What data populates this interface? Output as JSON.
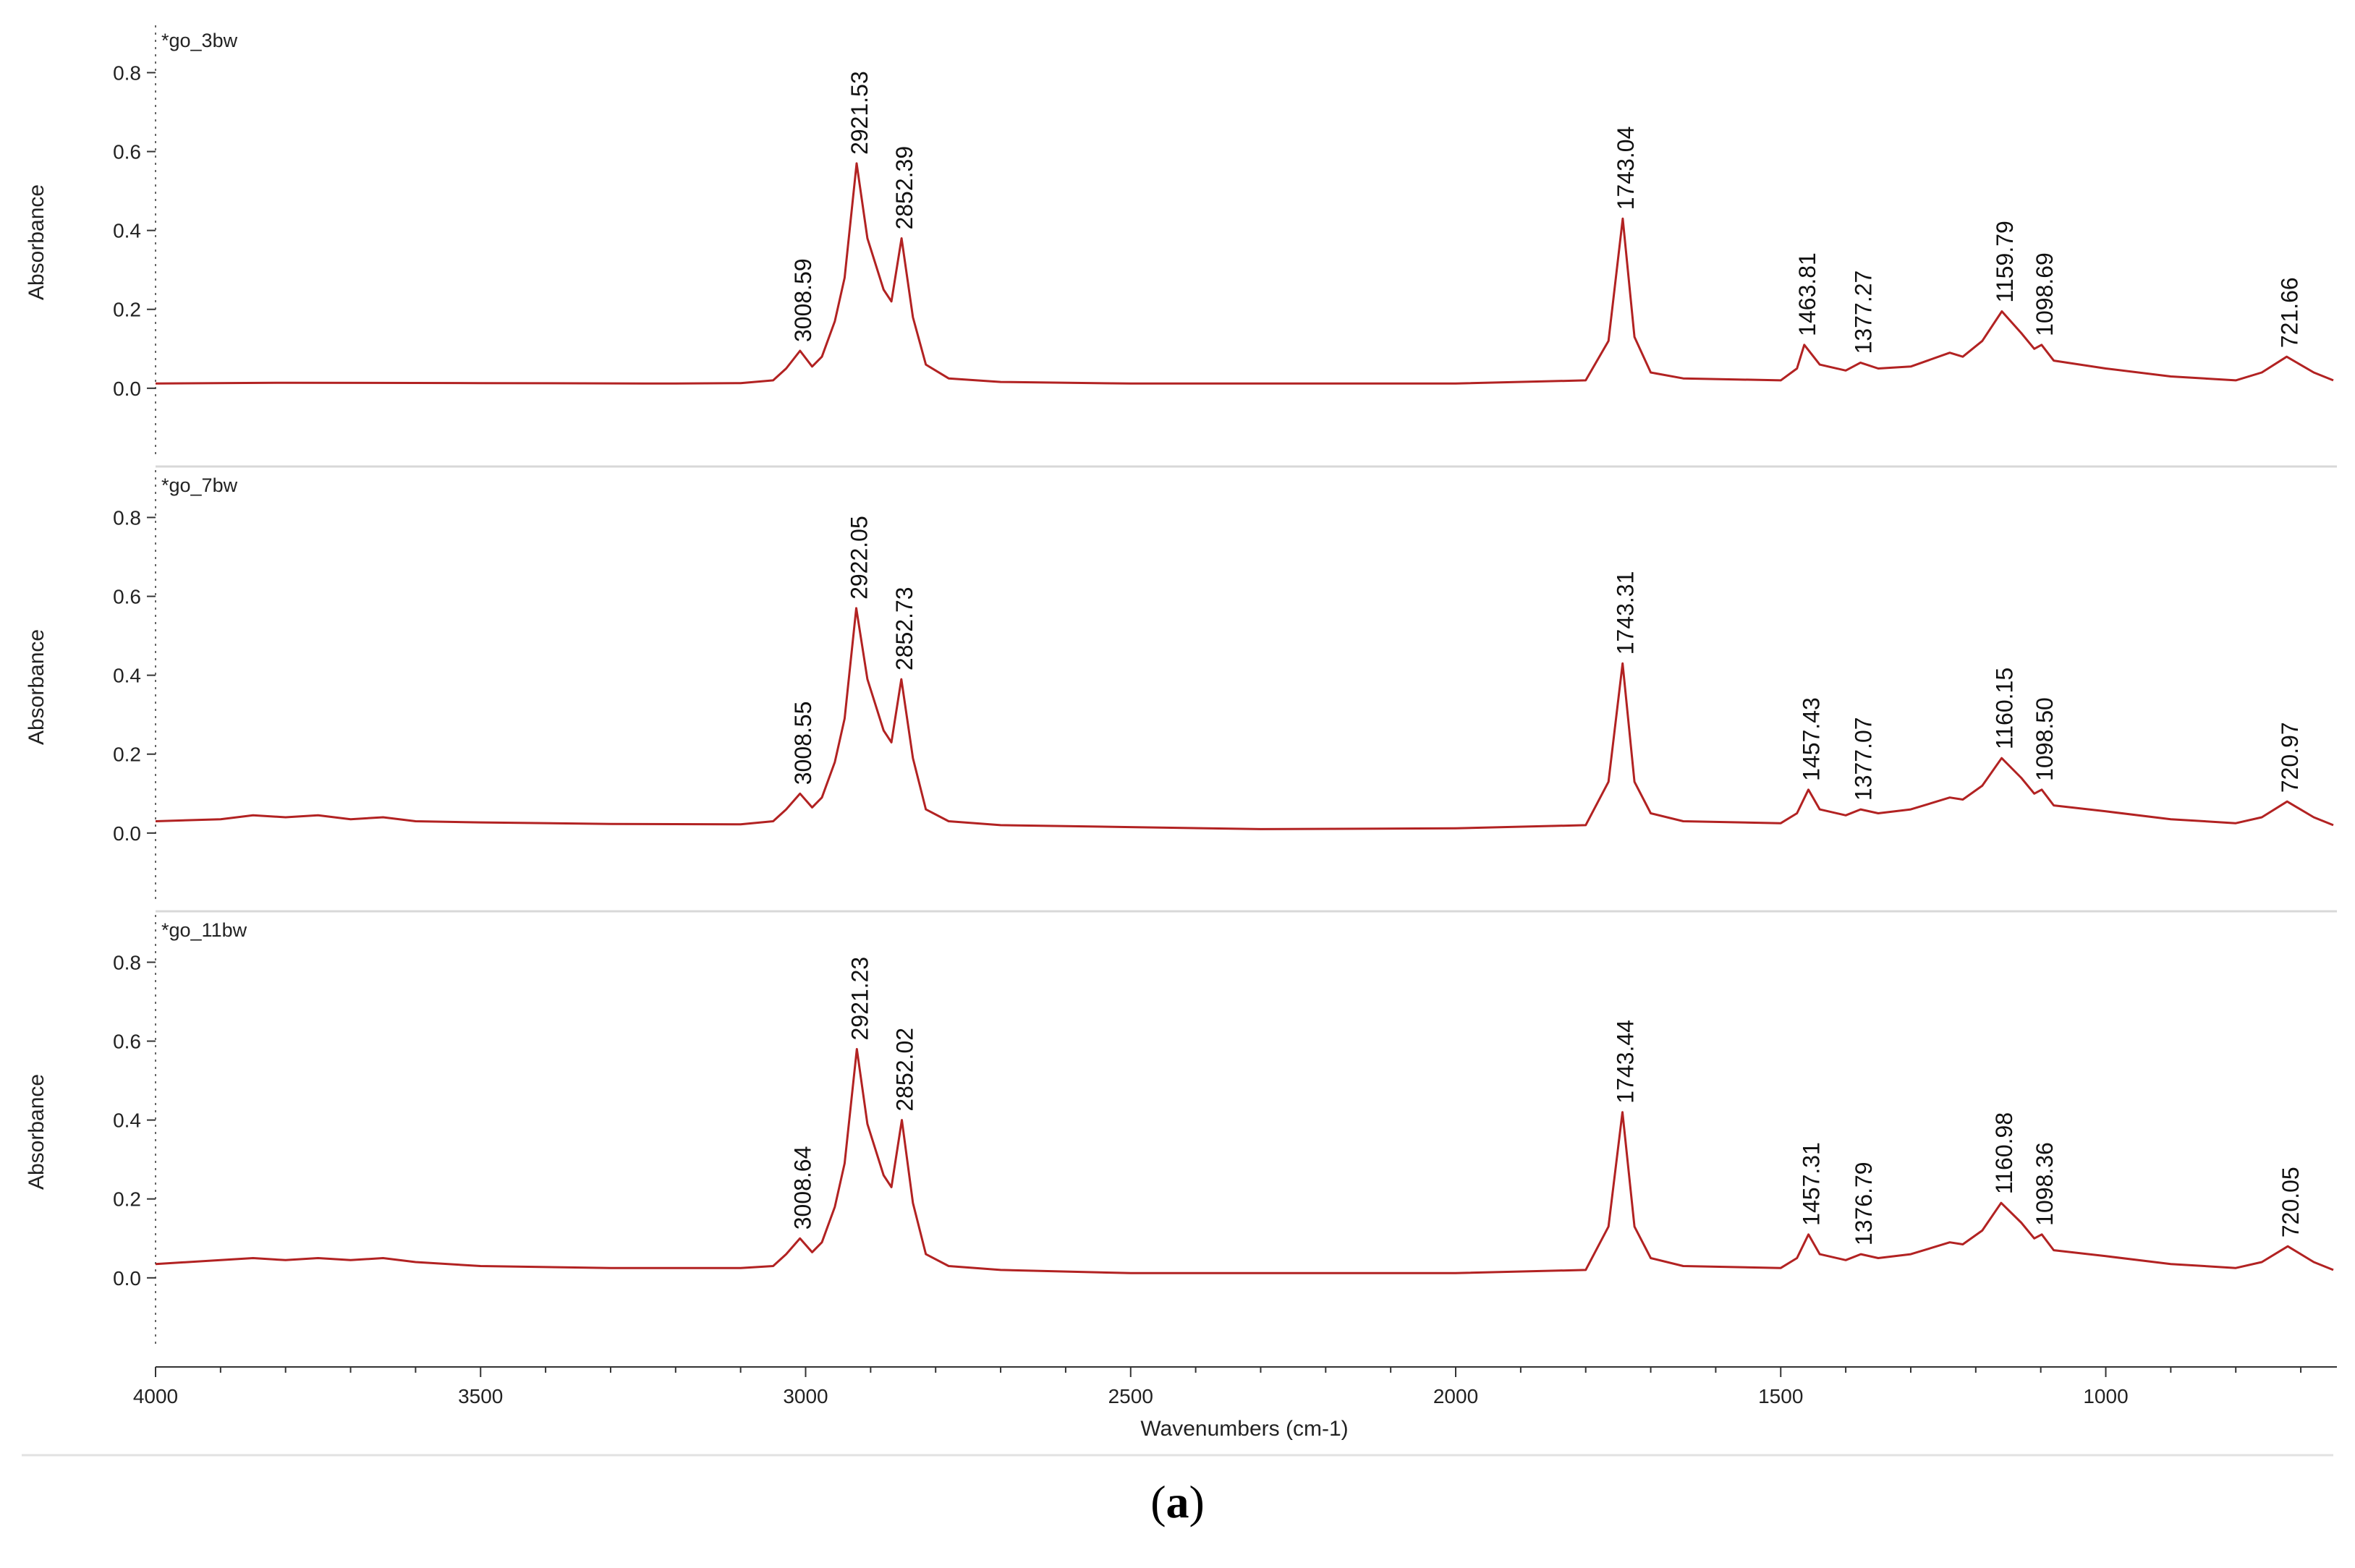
{
  "chart_data": {
    "type": "line",
    "xlabel": "Wavenumbers (cm-1)",
    "ylabel": "Absorbance",
    "xlim": [
      4000,
      650
    ],
    "x_ticks": [
      4000,
      3500,
      3000,
      2500,
      2000,
      1500,
      1000
    ],
    "ylim": [
      -0.18,
      0.92
    ],
    "y_ticks": [
      0.0,
      0.2,
      0.4,
      0.6,
      0.8
    ],
    "y_tick_labels": [
      "0.0",
      "0.2",
      "0.4",
      "0.6",
      "0.8"
    ],
    "line_color": "#b22222",
    "grid": false,
    "panels": [
      {
        "name": "*go_3bw",
        "ylabel": "Absorbance",
        "spectrum": [
          [
            4000,
            0.012
          ],
          [
            3800,
            0.014
          ],
          [
            3500,
            0.013
          ],
          [
            3200,
            0.012
          ],
          [
            3100,
            0.013
          ],
          [
            3050,
            0.02
          ],
          [
            3030,
            0.05
          ],
          [
            3008.59,
            0.095
          ],
          [
            2990,
            0.055
          ],
          [
            2975,
            0.08
          ],
          [
            2955,
            0.17
          ],
          [
            2940,
            0.28
          ],
          [
            2921.53,
            0.57
          ],
          [
            2905,
            0.38
          ],
          [
            2880,
            0.25
          ],
          [
            2868,
            0.22
          ],
          [
            2852.39,
            0.38
          ],
          [
            2835,
            0.18
          ],
          [
            2815,
            0.06
          ],
          [
            2780,
            0.025
          ],
          [
            2700,
            0.016
          ],
          [
            2500,
            0.012
          ],
          [
            2000,
            0.012
          ],
          [
            1800,
            0.02
          ],
          [
            1765,
            0.12
          ],
          [
            1743.04,
            0.43
          ],
          [
            1725,
            0.13
          ],
          [
            1700,
            0.04
          ],
          [
            1650,
            0.025
          ],
          [
            1500,
            0.02
          ],
          [
            1475,
            0.05
          ],
          [
            1463.81,
            0.11
          ],
          [
            1440,
            0.06
          ],
          [
            1400,
            0.045
          ],
          [
            1377.27,
            0.065
          ],
          [
            1350,
            0.05
          ],
          [
            1300,
            0.055
          ],
          [
            1240,
            0.09
          ],
          [
            1220,
            0.08
          ],
          [
            1190,
            0.12
          ],
          [
            1159.79,
            0.195
          ],
          [
            1130,
            0.14
          ],
          [
            1110,
            0.1
          ],
          [
            1098.69,
            0.11
          ],
          [
            1080,
            0.07
          ],
          [
            1000,
            0.05
          ],
          [
            900,
            0.03
          ],
          [
            800,
            0.02
          ],
          [
            760,
            0.04
          ],
          [
            721.66,
            0.08
          ],
          [
            680,
            0.04
          ],
          [
            650,
            0.02
          ]
        ],
        "peaks": [
          {
            "x": 3008.59,
            "y": 0.095,
            "label": "3008.59"
          },
          {
            "x": 2921.53,
            "y": 0.57,
            "label": "2921.53"
          },
          {
            "x": 2852.39,
            "y": 0.38,
            "label": "2852.39"
          },
          {
            "x": 1743.04,
            "y": 0.43,
            "label": "1743.04"
          },
          {
            "x": 1463.81,
            "y": 0.11,
            "label": "1463.81"
          },
          {
            "x": 1377.27,
            "y": 0.065,
            "label": "1377.27"
          },
          {
            "x": 1159.79,
            "y": 0.195,
            "label": "1159.79"
          },
          {
            "x": 1098.69,
            "y": 0.11,
            "label": "1098.69"
          },
          {
            "x": 721.66,
            "y": 0.08,
            "label": "721.66"
          }
        ]
      },
      {
        "name": "*go_7bw",
        "ylabel": "Absorbance",
        "spectrum": [
          [
            4000,
            0.03
          ],
          [
            3900,
            0.035
          ],
          [
            3850,
            0.045
          ],
          [
            3800,
            0.04
          ],
          [
            3750,
            0.045
          ],
          [
            3700,
            0.035
          ],
          [
            3650,
            0.04
          ],
          [
            3600,
            0.03
          ],
          [
            3500,
            0.027
          ],
          [
            3300,
            0.023
          ],
          [
            3100,
            0.022
          ],
          [
            3050,
            0.03
          ],
          [
            3030,
            0.06
          ],
          [
            3008.55,
            0.1
          ],
          [
            2990,
            0.065
          ],
          [
            2975,
            0.09
          ],
          [
            2955,
            0.18
          ],
          [
            2940,
            0.29
          ],
          [
            2922.05,
            0.57
          ],
          [
            2905,
            0.39
          ],
          [
            2880,
            0.26
          ],
          [
            2868,
            0.23
          ],
          [
            2852.73,
            0.39
          ],
          [
            2835,
            0.19
          ],
          [
            2815,
            0.06
          ],
          [
            2780,
            0.03
          ],
          [
            2700,
            0.02
          ],
          [
            2500,
            0.015
          ],
          [
            2300,
            0.01
          ],
          [
            2000,
            0.012
          ],
          [
            1800,
            0.02
          ],
          [
            1765,
            0.13
          ],
          [
            1743.31,
            0.43
          ],
          [
            1725,
            0.13
          ],
          [
            1700,
            0.05
          ],
          [
            1650,
            0.03
          ],
          [
            1500,
            0.025
          ],
          [
            1475,
            0.05
          ],
          [
            1457.43,
            0.11
          ],
          [
            1440,
            0.06
          ],
          [
            1400,
            0.045
          ],
          [
            1377.07,
            0.06
          ],
          [
            1350,
            0.05
          ],
          [
            1300,
            0.06
          ],
          [
            1240,
            0.09
          ],
          [
            1220,
            0.085
          ],
          [
            1190,
            0.12
          ],
          [
            1160.15,
            0.19
          ],
          [
            1130,
            0.14
          ],
          [
            1110,
            0.1
          ],
          [
            1098.5,
            0.11
          ],
          [
            1080,
            0.07
          ],
          [
            1000,
            0.055
          ],
          [
            900,
            0.035
          ],
          [
            800,
            0.025
          ],
          [
            760,
            0.04
          ],
          [
            720.97,
            0.08
          ],
          [
            680,
            0.04
          ],
          [
            650,
            0.02
          ]
        ],
        "peaks": [
          {
            "x": 3008.55,
            "y": 0.1,
            "label": "3008.55"
          },
          {
            "x": 2922.05,
            "y": 0.57,
            "label": "2922.05"
          },
          {
            "x": 2852.73,
            "y": 0.39,
            "label": "2852.73"
          },
          {
            "x": 1743.31,
            "y": 0.43,
            "label": "1743.31"
          },
          {
            "x": 1457.43,
            "y": 0.11,
            "label": "1457.43"
          },
          {
            "x": 1377.07,
            "y": 0.06,
            "label": "1377.07"
          },
          {
            "x": 1160.15,
            "y": 0.19,
            "label": "1160.15"
          },
          {
            "x": 1098.5,
            "y": 0.11,
            "label": "1098.50"
          },
          {
            "x": 720.97,
            "y": 0.08,
            "label": "720.97"
          }
        ]
      },
      {
        "name": "*go_11bw",
        "ylabel": "Absorbance",
        "spectrum": [
          [
            4000,
            0.035
          ],
          [
            3900,
            0.045
          ],
          [
            3850,
            0.05
          ],
          [
            3800,
            0.045
          ],
          [
            3750,
            0.05
          ],
          [
            3700,
            0.045
          ],
          [
            3650,
            0.05
          ],
          [
            3600,
            0.04
          ],
          [
            3500,
            0.03
          ],
          [
            3300,
            0.025
          ],
          [
            3100,
            0.025
          ],
          [
            3050,
            0.03
          ],
          [
            3030,
            0.06
          ],
          [
            3008.64,
            0.1
          ],
          [
            2990,
            0.065
          ],
          [
            2975,
            0.09
          ],
          [
            2955,
            0.18
          ],
          [
            2940,
            0.29
          ],
          [
            2921.23,
            0.58
          ],
          [
            2905,
            0.39
          ],
          [
            2880,
            0.26
          ],
          [
            2868,
            0.23
          ],
          [
            2852.02,
            0.4
          ],
          [
            2835,
            0.19
          ],
          [
            2815,
            0.06
          ],
          [
            2780,
            0.03
          ],
          [
            2700,
            0.02
          ],
          [
            2500,
            0.012
          ],
          [
            2000,
            0.012
          ],
          [
            1800,
            0.02
          ],
          [
            1765,
            0.13
          ],
          [
            1743.44,
            0.42
          ],
          [
            1725,
            0.13
          ],
          [
            1700,
            0.05
          ],
          [
            1650,
            0.03
          ],
          [
            1500,
            0.025
          ],
          [
            1475,
            0.05
          ],
          [
            1457.31,
            0.11
          ],
          [
            1440,
            0.06
          ],
          [
            1400,
            0.045
          ],
          [
            1376.79,
            0.06
          ],
          [
            1350,
            0.05
          ],
          [
            1300,
            0.06
          ],
          [
            1240,
            0.09
          ],
          [
            1220,
            0.085
          ],
          [
            1190,
            0.12
          ],
          [
            1160.98,
            0.19
          ],
          [
            1130,
            0.14
          ],
          [
            1110,
            0.1
          ],
          [
            1098.36,
            0.11
          ],
          [
            1080,
            0.07
          ],
          [
            1000,
            0.055
          ],
          [
            900,
            0.035
          ],
          [
            800,
            0.025
          ],
          [
            760,
            0.04
          ],
          [
            720.05,
            0.08
          ],
          [
            680,
            0.04
          ],
          [
            650,
            0.02
          ]
        ],
        "peaks": [
          {
            "x": 3008.64,
            "y": 0.1,
            "label": "3008.64"
          },
          {
            "x": 2921.23,
            "y": 0.58,
            "label": "2921.23"
          },
          {
            "x": 2852.02,
            "y": 0.4,
            "label": "2852.02"
          },
          {
            "x": 1743.44,
            "y": 0.42,
            "label": "1743.44"
          },
          {
            "x": 1457.31,
            "y": 0.11,
            "label": "1457.31"
          },
          {
            "x": 1376.79,
            "y": 0.06,
            "label": "1376.79"
          },
          {
            "x": 1160.98,
            "y": 0.19,
            "label": "1160.98"
          },
          {
            "x": 1098.36,
            "y": 0.11,
            "label": "1098.36"
          },
          {
            "x": 720.05,
            "y": 0.08,
            "label": "720.05"
          }
        ]
      }
    ]
  },
  "caption": {
    "open": "(",
    "letter": "a",
    "close": ")"
  }
}
